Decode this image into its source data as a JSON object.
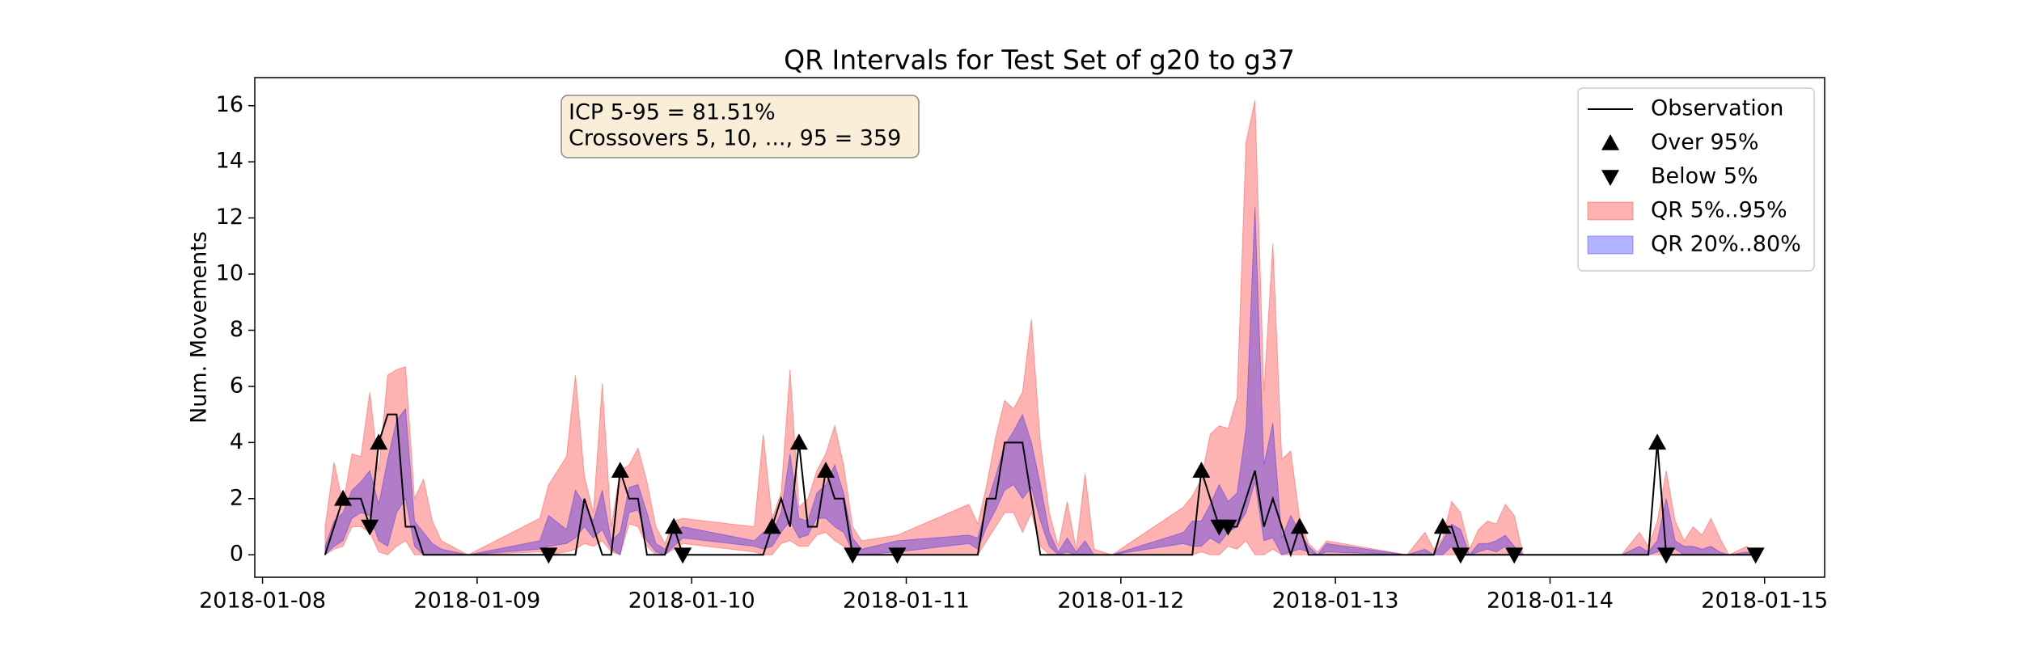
{
  "chart_data": {
    "type": "line",
    "title": "QR Intervals for Test Set of g20 to g37",
    "ylabel": "Num. Movements",
    "annotation": [
      "ICP 5-95 = 81.51%",
      "Crossovers 5, 10, ..., 95 = 359"
    ],
    "legend": "upper right",
    "xlim": [
      "2018-01-07T23:08",
      "2018-01-15T06:43"
    ],
    "xticks": [
      "2018-01-08",
      "2018-01-09",
      "2018-01-10",
      "2018-01-11",
      "2018-01-12",
      "2018-01-13",
      "2018-01-14",
      "2018-01-15"
    ],
    "ylim": [
      -0.8,
      17
    ],
    "yticks": [
      0,
      2,
      4,
      6,
      8,
      10,
      12,
      14,
      16
    ],
    "x": [
      "2018-01-08T07:00",
      "2018-01-08T08:00",
      "2018-01-08T09:00",
      "2018-01-08T10:00",
      "2018-01-08T11:00",
      "2018-01-08T12:00",
      "2018-01-08T13:00",
      "2018-01-08T14:00",
      "2018-01-08T15:00",
      "2018-01-08T16:00",
      "2018-01-08T17:00",
      "2018-01-08T18:00",
      "2018-01-08T19:00",
      "2018-01-08T20:00",
      "2018-01-08T23:00",
      "2018-01-09T07:00",
      "2018-01-09T08:00",
      "2018-01-09T10:00",
      "2018-01-09T11:00",
      "2018-01-09T12:00",
      "2018-01-09T13:00",
      "2018-01-09T14:00",
      "2018-01-09T15:00",
      "2018-01-09T16:00",
      "2018-01-09T17:00",
      "2018-01-09T18:00",
      "2018-01-09T19:00",
      "2018-01-09T20:00",
      "2018-01-09T21:00",
      "2018-01-09T22:00",
      "2018-01-09T23:00",
      "2018-01-10T07:00",
      "2018-01-10T08:00",
      "2018-01-10T09:00",
      "2018-01-10T10:00",
      "2018-01-10T11:00",
      "2018-01-10T12:00",
      "2018-01-10T13:00",
      "2018-01-10T14:00",
      "2018-01-10T15:00",
      "2018-01-10T16:00",
      "2018-01-10T17:00",
      "2018-01-10T18:00",
      "2018-01-10T19:00",
      "2018-01-10T23:00",
      "2018-01-11T07:00",
      "2018-01-11T08:00",
      "2018-01-11T09:00",
      "2018-01-11T10:00",
      "2018-01-11T11:00",
      "2018-01-11T12:00",
      "2018-01-11T13:00",
      "2018-01-11T14:00",
      "2018-01-11T15:00",
      "2018-01-11T16:00",
      "2018-01-11T17:00",
      "2018-01-11T18:00",
      "2018-01-11T19:00",
      "2018-01-11T20:00",
      "2018-01-11T21:00",
      "2018-01-11T23:00",
      "2018-01-12T07:00",
      "2018-01-12T08:00",
      "2018-01-12T09:00",
      "2018-01-12T10:00",
      "2018-01-12T11:00",
      "2018-01-12T12:00",
      "2018-01-12T13:00",
      "2018-01-12T14:00",
      "2018-01-12T15:00",
      "2018-01-12T16:00",
      "2018-01-12T17:00",
      "2018-01-12T18:00",
      "2018-01-12T19:00",
      "2018-01-12T20:00",
      "2018-01-12T21:00",
      "2018-01-12T22:00",
      "2018-01-12T23:00",
      "2018-01-13T08:00",
      "2018-01-13T10:00",
      "2018-01-13T11:00",
      "2018-01-13T12:00",
      "2018-01-13T13:00",
      "2018-01-13T14:00",
      "2018-01-13T15:00",
      "2018-01-13T16:00",
      "2018-01-13T17:00",
      "2018-01-13T18:00",
      "2018-01-13T19:00",
      "2018-01-13T20:00",
      "2018-01-13T21:00",
      "2018-01-14T08:00",
      "2018-01-14T10:00",
      "2018-01-14T11:00",
      "2018-01-14T12:00",
      "2018-01-14T13:00",
      "2018-01-14T14:00",
      "2018-01-14T15:00",
      "2018-01-14T16:00",
      "2018-01-14T17:00",
      "2018-01-14T18:00",
      "2018-01-14T19:00",
      "2018-01-14T20:00",
      "2018-01-14T22:00",
      "2018-01-14T23:00"
    ],
    "series": [
      {
        "name": "Observation",
        "style": "line",
        "color": "#000000",
        "values": [
          0,
          1,
          2,
          2,
          2,
          1,
          4,
          5,
          5,
          1,
          1,
          0,
          0,
          0,
          0,
          0,
          0,
          0,
          0,
          2,
          1,
          0,
          0,
          3,
          2,
          2,
          0,
          0,
          0,
          1,
          0,
          0,
          0,
          1,
          2,
          1,
          4,
          1,
          1,
          3,
          2,
          2,
          0,
          0,
          0,
          0,
          0,
          2,
          2,
          4,
          4,
          4,
          2,
          0,
          0,
          0,
          0,
          0,
          0,
          0,
          0,
          0,
          0,
          3,
          2,
          1,
          1,
          1,
          2,
          3,
          1,
          2,
          1,
          0,
          1,
          0,
          0,
          0,
          0,
          0,
          0,
          1,
          1,
          0,
          0,
          0,
          0,
          0,
          0,
          0,
          0,
          0,
          0,
          0,
          4,
          0,
          0,
          0,
          0,
          0,
          0,
          0,
          0,
          0,
          0
        ]
      },
      {
        "name": "Over 95%",
        "style": "up",
        "color": "#000000",
        "values": [
          null,
          null,
          2,
          null,
          null,
          null,
          4,
          null,
          null,
          null,
          null,
          null,
          null,
          null,
          null,
          null,
          null,
          null,
          null,
          null,
          null,
          null,
          null,
          3,
          null,
          null,
          null,
          null,
          null,
          1,
          null,
          null,
          null,
          1,
          null,
          null,
          4,
          null,
          null,
          3,
          null,
          null,
          null,
          null,
          null,
          null,
          null,
          null,
          null,
          null,
          null,
          null,
          null,
          null,
          null,
          null,
          null,
          null,
          null,
          null,
          null,
          null,
          null,
          3,
          null,
          null,
          null,
          null,
          null,
          null,
          null,
          null,
          null,
          null,
          1,
          null,
          null,
          null,
          null,
          null,
          null,
          1,
          null,
          null,
          null,
          null,
          null,
          null,
          null,
          null,
          null,
          null,
          null,
          null,
          4,
          null,
          null,
          null,
          null,
          null,
          null,
          null,
          null,
          null,
          null
        ]
      },
      {
        "name": "Below 5%",
        "style": "down",
        "color": "#000000",
        "values": [
          null,
          null,
          null,
          null,
          null,
          1,
          null,
          null,
          null,
          null,
          null,
          null,
          null,
          null,
          null,
          null,
          0,
          null,
          null,
          null,
          null,
          null,
          null,
          null,
          null,
          null,
          null,
          null,
          null,
          null,
          0,
          null,
          null,
          null,
          null,
          null,
          null,
          null,
          null,
          null,
          null,
          null,
          0,
          null,
          0,
          null,
          null,
          null,
          null,
          null,
          null,
          null,
          null,
          null,
          null,
          null,
          null,
          null,
          null,
          null,
          null,
          null,
          null,
          null,
          null,
          1,
          1,
          null,
          null,
          null,
          null,
          null,
          null,
          null,
          null,
          null,
          null,
          null,
          null,
          null,
          null,
          null,
          null,
          0,
          null,
          null,
          null,
          null,
          null,
          0,
          null,
          null,
          null,
          null,
          null,
          0,
          null,
          null,
          null,
          null,
          null,
          null,
          null,
          null,
          0
        ]
      }
    ],
    "bands": [
      {
        "name": "QR 5%..95%",
        "color": "#ff0000",
        "lower": [
          0,
          0.2,
          0.3,
          1,
          1,
          0.8,
          0.1,
          0,
          0.3,
          0.5,
          0,
          0,
          0,
          0,
          0,
          0.1,
          0,
          0.1,
          0.2,
          0.4,
          0.3,
          0.5,
          0.1,
          0,
          1.1,
          1,
          0.3,
          0,
          0,
          0.2,
          0.4,
          0.1,
          0,
          0,
          0.4,
          0.5,
          0.3,
          0.3,
          0.7,
          0.8,
          0.5,
          0.3,
          0,
          0,
          0,
          0,
          0,
          0.5,
          1,
          1.5,
          1.5,
          0.8,
          1.5,
          0.3,
          0,
          0,
          0,
          0,
          0,
          0,
          0,
          0,
          0,
          0.1,
          0,
          0,
          0.3,
          0.2,
          0.5,
          0,
          0,
          0.2,
          0,
          0,
          0,
          0,
          0,
          0,
          0,
          0,
          0,
          0,
          0,
          0,
          0,
          0,
          0,
          0,
          0,
          0,
          0,
          0,
          0,
          0,
          0,
          0,
          0,
          0,
          0,
          0,
          0,
          0,
          0,
          0,
          0
        ],
        "upper": [
          1,
          3.3,
          1.8,
          3.6,
          3.5,
          5.8,
          3,
          6.4,
          6.6,
          6.7,
          2,
          2.7,
          1.2,
          0.5,
          0,
          1.3,
          2.5,
          3.5,
          6.4,
          2.8,
          1.5,
          6.1,
          1,
          3,
          3.2,
          3.8,
          2.6,
          1,
          0.4,
          1.2,
          1.3,
          1,
          4.3,
          1.3,
          2.2,
          6.6,
          1.7,
          2,
          3,
          3.6,
          4.6,
          3.2,
          1,
          0.5,
          0.7,
          1.8,
          1.1,
          2.5,
          4.2,
          5.5,
          5.2,
          5.8,
          8.4,
          4,
          1.5,
          0.3,
          1.9,
          0.2,
          2.9,
          0.2,
          0,
          1.7,
          2.1,
          2.7,
          4.3,
          4.6,
          4.5,
          5.6,
          14.7,
          16.2,
          5.8,
          11.1,
          3.4,
          3.7,
          1.3,
          0.4,
          0.1,
          0.5,
          0,
          0.8,
          0.2,
          0.6,
          1.9,
          1.5,
          0.2,
          0.9,
          1.2,
          1.1,
          1.8,
          1.4,
          0,
          0,
          0.8,
          0.3,
          1.2,
          3,
          1.2,
          0.5,
          1,
          0.7,
          1.3,
          0.6,
          0,
          0.3,
          0
        ]
      },
      {
        "name": "QR 20%..80%",
        "color": "#0000ff",
        "lower": [
          0,
          0.3,
          0.5,
          1.3,
          1.5,
          1.4,
          0.5,
          0.3,
          1.5,
          2,
          0.3,
          0,
          0,
          0,
          0,
          0.2,
          0.3,
          0.4,
          0.6,
          1,
          0.6,
          0.9,
          0.2,
          0,
          1.5,
          1.6,
          0.5,
          0.1,
          0,
          0.3,
          0.6,
          0.3,
          0.2,
          0.3,
          0.8,
          1.2,
          0.6,
          0.7,
          1.3,
          1.3,
          1,
          0.8,
          0.1,
          0,
          0.1,
          0.4,
          0.2,
          1,
          1.6,
          2.3,
          2.5,
          2,
          2.4,
          1.2,
          0.3,
          0,
          0.1,
          0,
          0,
          0,
          0,
          0.4,
          0.3,
          0.3,
          0.6,
          0.4,
          0.8,
          1,
          1.5,
          2.6,
          0.5,
          0.6,
          0,
          0.1,
          0.2,
          0.1,
          0,
          0.1,
          0,
          0,
          0,
          0,
          0.3,
          0.1,
          0,
          0.1,
          0.2,
          0.1,
          0.3,
          0.2,
          0,
          0,
          0,
          0,
          0.1,
          0.3,
          0.2,
          0,
          0,
          0,
          0,
          0,
          0,
          0,
          0
        ],
        "upper": [
          0.3,
          1.2,
          1.5,
          2.3,
          2.6,
          3,
          1.8,
          3.4,
          4.8,
          5.2,
          1.2,
          0.8,
          0.4,
          0.2,
          0,
          0.5,
          1.4,
          0.9,
          2.3,
          1.8,
          1.2,
          2.3,
          0.5,
          0.8,
          2.4,
          2.5,
          1.5,
          0.4,
          0.2,
          0.8,
          1,
          0.5,
          0.8,
          0.8,
          1.5,
          3.6,
          1.3,
          1.2,
          2.2,
          2.5,
          3.2,
          2.2,
          0.6,
          0.2,
          0.5,
          0.7,
          0.6,
          1.8,
          2.8,
          3.9,
          4.4,
          5,
          4,
          2.5,
          0.8,
          0.1,
          0.6,
          0.1,
          0.5,
          0,
          0,
          0.8,
          1.2,
          1.2,
          1.8,
          2.5,
          1.9,
          2.2,
          4.5,
          12.4,
          3.2,
          4.7,
          0.6,
          1.4,
          0.8,
          0.3,
          0,
          0.4,
          0,
          0.2,
          0,
          0.5,
          1.1,
          0.9,
          0,
          0.4,
          0.4,
          0.5,
          0.7,
          0.3,
          0,
          0,
          0.3,
          0.1,
          0.5,
          2,
          0.5,
          0.3,
          0.3,
          0.2,
          0.3,
          0.1,
          0,
          0.1,
          0
        ]
      }
    ]
  }
}
